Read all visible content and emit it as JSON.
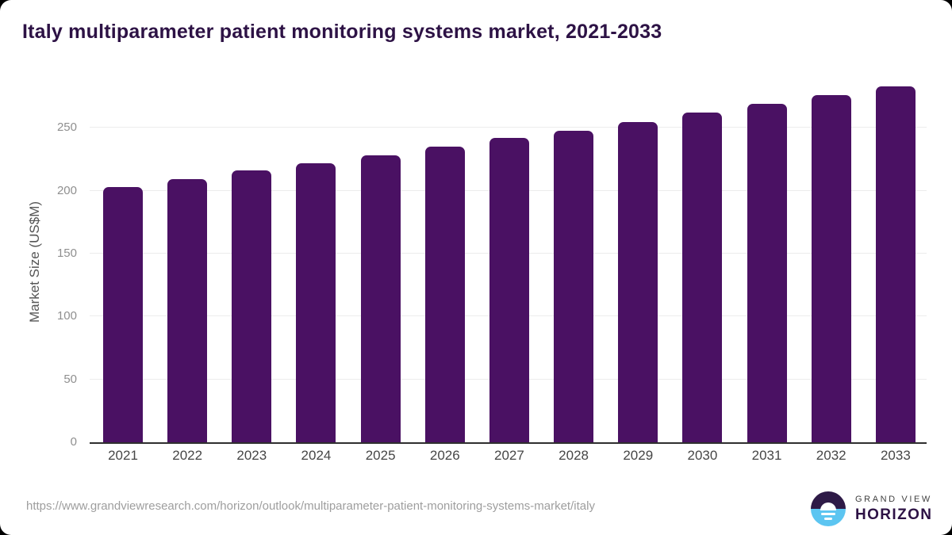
{
  "page": {
    "title": "Italy multiparameter patient monitoring systems market, 2021-2033"
  },
  "chart_data": {
    "type": "bar",
    "title": "Italy multiparameter patient monitoring systems market, 2021-2033",
    "categories": [
      "2021",
      "2022",
      "2023",
      "2024",
      "2025",
      "2026",
      "2027",
      "2028",
      "2029",
      "2030",
      "2031",
      "2032",
      "2033"
    ],
    "values": [
      203,
      209,
      216,
      222,
      228,
      235,
      242,
      248,
      255,
      262,
      269,
      276,
      283
    ],
    "xlabel": "",
    "ylabel": "Market Size (US$M)",
    "ylim": [
      0,
      290
    ],
    "yticks": [
      0,
      50,
      100,
      150,
      200,
      250
    ],
    "grid": true,
    "legend_position": "none",
    "bar_color": "#4a1163"
  },
  "colors": {
    "title": "#2d1245",
    "bar": "#4a1163",
    "gridline": "#ececec",
    "baseline": "#2f2f2f",
    "y_tick_text": "#8f8f8f",
    "x_tick_text": "#464646",
    "logo_purple": "#2e1a47",
    "logo_blue": "#5cc5f1"
  },
  "footer": {
    "source_url": "https://www.grandviewresearch.com/horizon/outlook/multiparameter-patient-monitoring-systems-market/italy",
    "logo": {
      "brand_top": "GRAND VIEW",
      "brand_bottom": "HORIZON"
    }
  }
}
